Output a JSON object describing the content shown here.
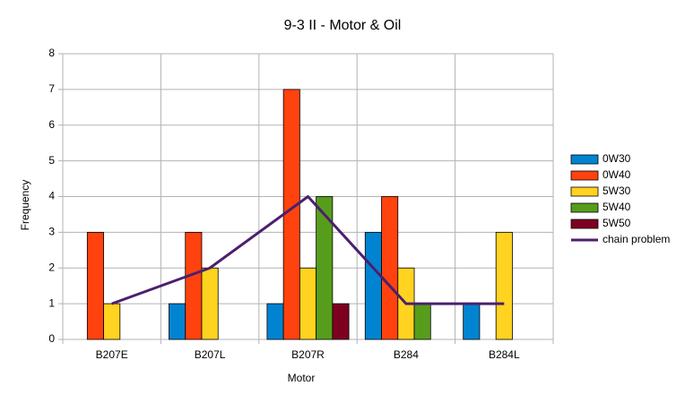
{
  "chart_data": {
    "type": "bar",
    "title": "9-3 II - Motor & Oil",
    "x_label": "Motor",
    "y_label": "Frequency",
    "categories": [
      "B207E",
      "B207L",
      "B207R",
      "B284",
      "B284L"
    ],
    "series": [
      {
        "name": "0W30",
        "color": "#0084d1",
        "values": [
          0,
          1,
          1,
          3,
          1
        ]
      },
      {
        "name": "0W40",
        "color": "#ff420e",
        "values": [
          3,
          3,
          7,
          4,
          0
        ]
      },
      {
        "name": "5W30",
        "color": "#ffd320",
        "values": [
          1,
          2,
          2,
          2,
          3
        ]
      },
      {
        "name": "5W40",
        "color": "#579d1c",
        "values": [
          0,
          0,
          4,
          1,
          0
        ]
      },
      {
        "name": "5W50",
        "color": "#7e0021",
        "values": [
          0,
          0,
          1,
          0,
          0
        ]
      },
      {
        "name": "chain problem",
        "type": "line",
        "color": "#4b1f6f",
        "values": [
          1,
          2,
          4,
          1,
          1
        ]
      }
    ],
    "ylim": [
      0,
      8
    ],
    "yticks": [
      0,
      1,
      2,
      3,
      4,
      5,
      6,
      7,
      8
    ],
    "grid": true,
    "legend": "right"
  }
}
